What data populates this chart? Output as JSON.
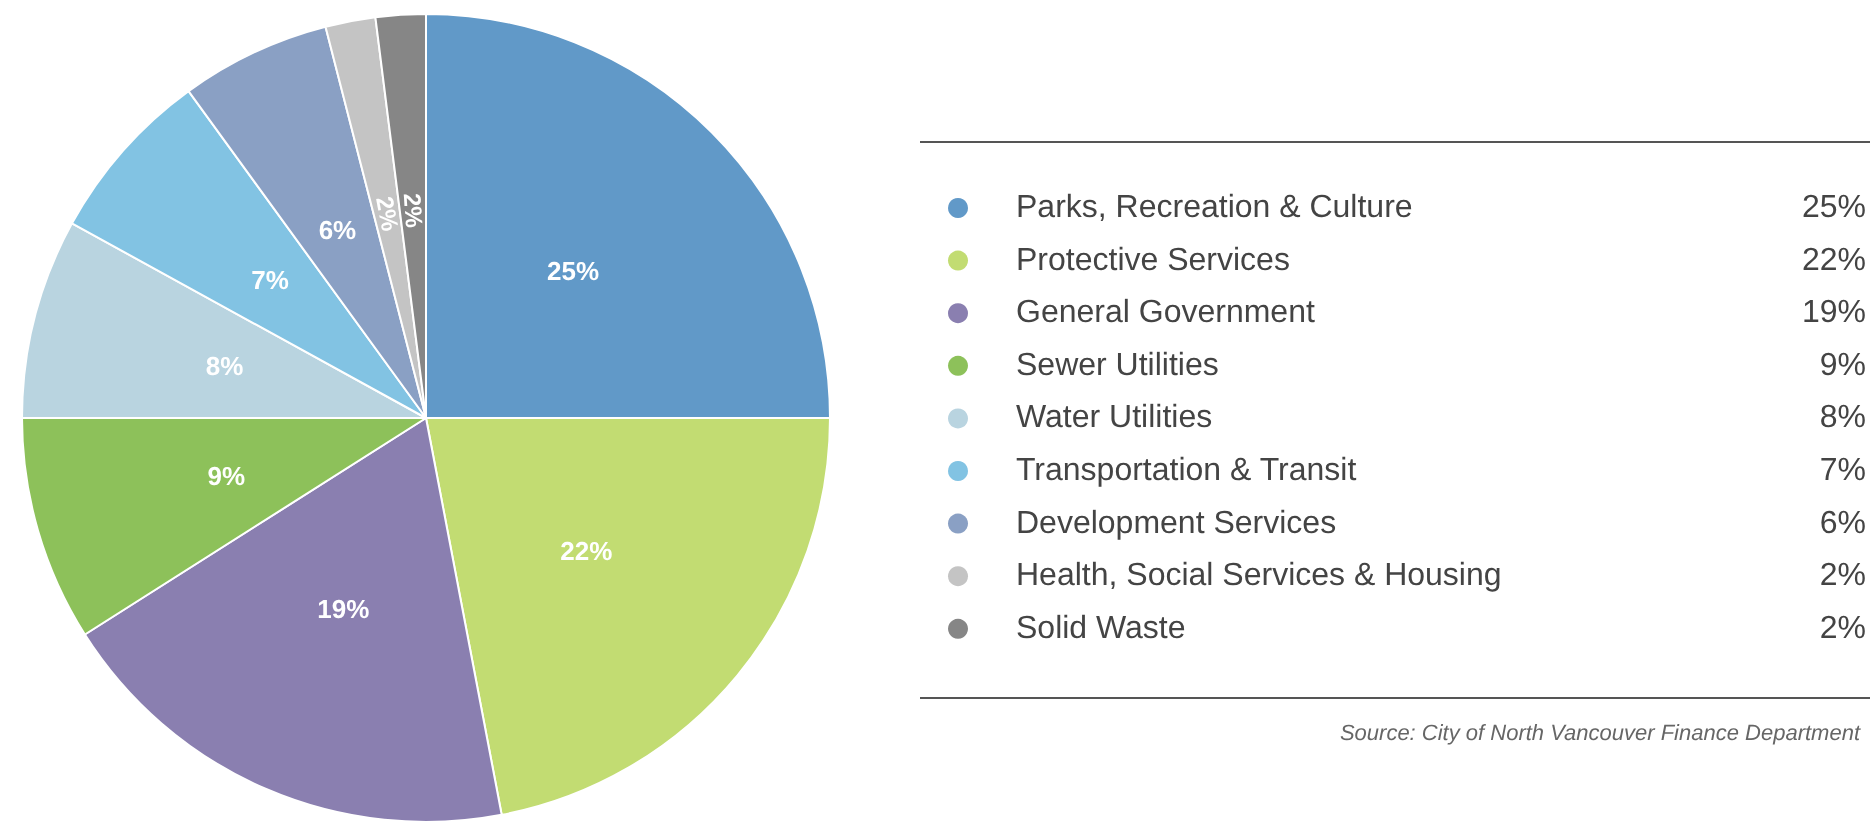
{
  "chart_data": {
    "type": "pie",
    "categories": [
      "Parks, Recreation & Culture",
      "Protective Services",
      "General Government",
      "Sewer Utilities",
      "Water Utilities",
      "Transportation & Transit",
      "Development Services",
      "Health, Social Services & Housing",
      "Solid Waste"
    ],
    "values": [
      25,
      22,
      19,
      9,
      8,
      7,
      6,
      2,
      2
    ],
    "value_labels": [
      "25%",
      "22%",
      "19%",
      "9%",
      "8%",
      "7%",
      "6%",
      "2%",
      "2%"
    ],
    "colors": [
      "#6199c8",
      "#c2dc72",
      "#8a7fb0",
      "#8dc15a",
      "#b9d4e0",
      "#82c3e3",
      "#8aa0c4",
      "#c4c4c4",
      "#868686"
    ],
    "legend": "right",
    "annotations": [
      "Source: City of North Vancouver Finance Department"
    ]
  }
}
